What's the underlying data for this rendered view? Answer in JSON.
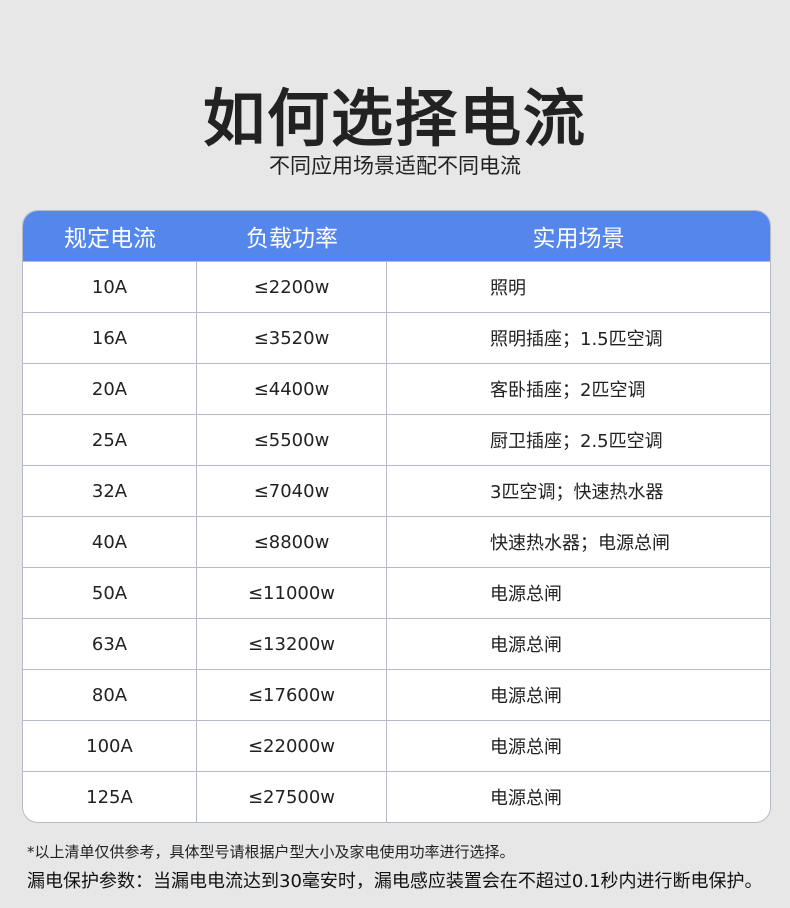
{
  "title": "如何选择电流",
  "subtitle": "不同应用场景适配不同电流",
  "table": {
    "headers": [
      "规定电流",
      "负载功率",
      "实用场景"
    ],
    "rows": [
      [
        "10A",
        "≤2200w",
        "照明"
      ],
      [
        "16A",
        "≤3520w",
        "照明插座；1.5匹空调"
      ],
      [
        "20A",
        "≤4400w",
        "客卧插座；2匹空调"
      ],
      [
        "25A",
        "≤5500w",
        "厨卫插座；2.5匹空调"
      ],
      [
        "32A",
        "≤7040w",
        "3匹空调；快速热水器"
      ],
      [
        "40A",
        "≤8800w",
        "快速热水器；电源总闸"
      ],
      [
        "50A",
        "≤11000w",
        "电源总闸"
      ],
      [
        "63A",
        "≤13200w",
        "电源总闸"
      ],
      [
        "80A",
        "≤17600w",
        "电源总闸"
      ],
      [
        "100A",
        "≤22000w",
        "电源总闸"
      ],
      [
        "125A",
        "≤27500w",
        "电源总闸"
      ]
    ]
  },
  "notes": [
    "*以上清单仅供参考，具体型号请根据户型大小及家电使用功率进行选择。",
    "漏电保护参数：当漏电电流达到30毫安时，漏电感应装置会在不超过0.1秒内进行断电保护。"
  ]
}
